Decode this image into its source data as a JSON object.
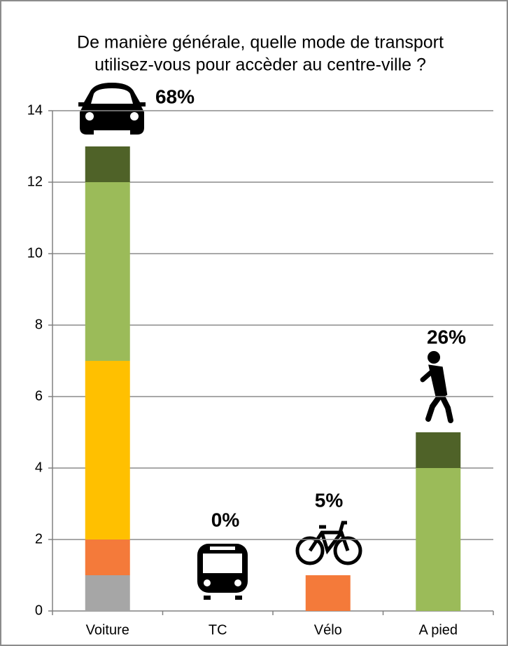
{
  "chart_data": {
    "type": "stacked_bar",
    "title": [
      "De manière générale, quelle mode de transport",
      "utilisez-vous pour accèder au centre-ville ?"
    ],
    "categories": [
      "Voiture",
      "TC",
      "Vélo",
      "A pied"
    ],
    "series": [
      {
        "color": "#a6a6a6",
        "values": [
          1,
          0,
          0,
          0
        ]
      },
      {
        "color": "#f47a3a",
        "values": [
          1,
          0,
          1,
          0
        ]
      },
      {
        "color": "#ffc000",
        "values": [
          5,
          0,
          0,
          0
        ]
      },
      {
        "color": "#9bbb59",
        "values": [
          5,
          0,
          0,
          4
        ]
      },
      {
        "color": "#4f6228",
        "values": [
          1,
          0,
          0,
          1
        ]
      }
    ],
    "annotations": [
      "68%",
      "0%",
      "5%",
      "26%"
    ],
    "ylim": [
      0,
      14
    ],
    "yticks": [
      0,
      2,
      4,
      6,
      8,
      10,
      12,
      14
    ],
    "grid": true
  }
}
